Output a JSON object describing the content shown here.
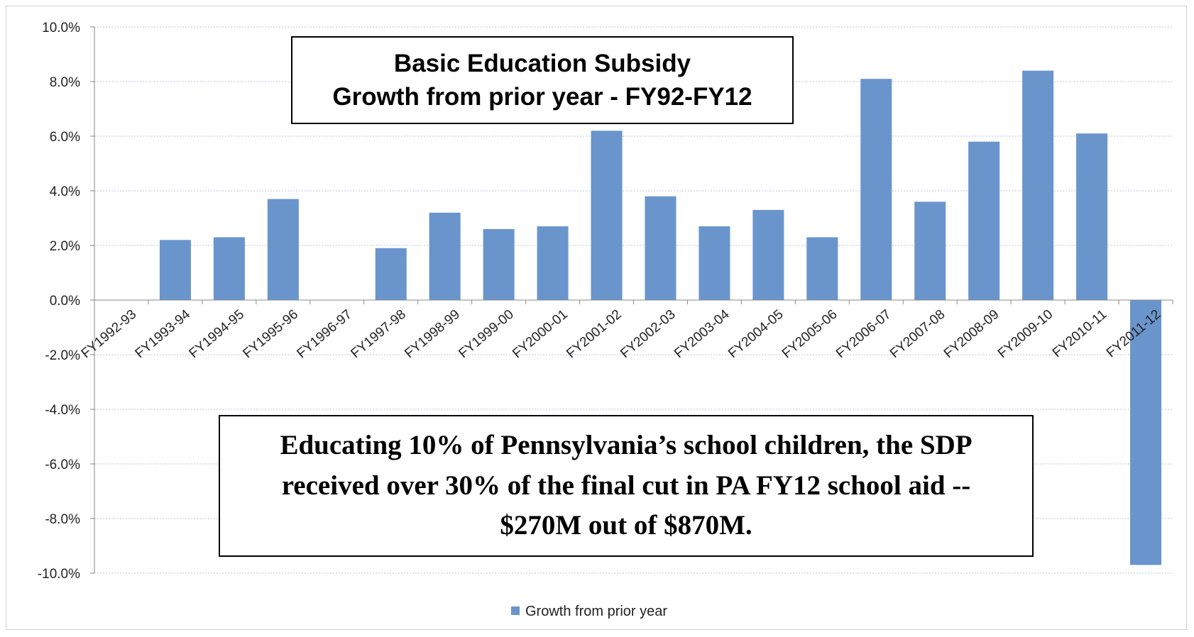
{
  "chart_data": {
    "type": "bar",
    "title": "Basic Education Subsidy",
    "subtitle": "Growth from prior year - FY92-FY12",
    "xlabel": "",
    "ylabel": "",
    "ylim": [
      -10,
      10
    ],
    "y_ticks": [
      10,
      8,
      6,
      4,
      2,
      0,
      -2,
      -4,
      -6,
      -8,
      -10
    ],
    "y_tick_format": "percent_1dp",
    "grid": true,
    "legend": "bottom-center",
    "categories": [
      "FY1992-93",
      "FY1993-94",
      "FY1994-95",
      "FY1995-96",
      "FY1996-97",
      "FY1997-98",
      "FY1998-99",
      "FY1999-00",
      "FY2000-01",
      "FY2001-02",
      "FY2002-03",
      "FY2003-04",
      "FY2004-05",
      "FY2005-06",
      "FY2006-07",
      "FY2007-08",
      "FY2008-09",
      "FY2009-10",
      "FY2010-11",
      "FY2011-12"
    ],
    "series": [
      {
        "name": "Growth from prior year",
        "color": "#6a95cc",
        "values": [
          0.0,
          2.2,
          2.3,
          3.7,
          0.0,
          1.9,
          3.2,
          2.6,
          2.7,
          6.2,
          3.8,
          2.7,
          3.3,
          2.3,
          8.1,
          3.6,
          5.8,
          8.4,
          6.1,
          -9.7
        ]
      }
    ],
    "annotation": "Educating 10% of Pennsylvania’s school children, the SDP received over 30% of the final cut in PA FY12 school aid -- $270M out of $870M."
  }
}
